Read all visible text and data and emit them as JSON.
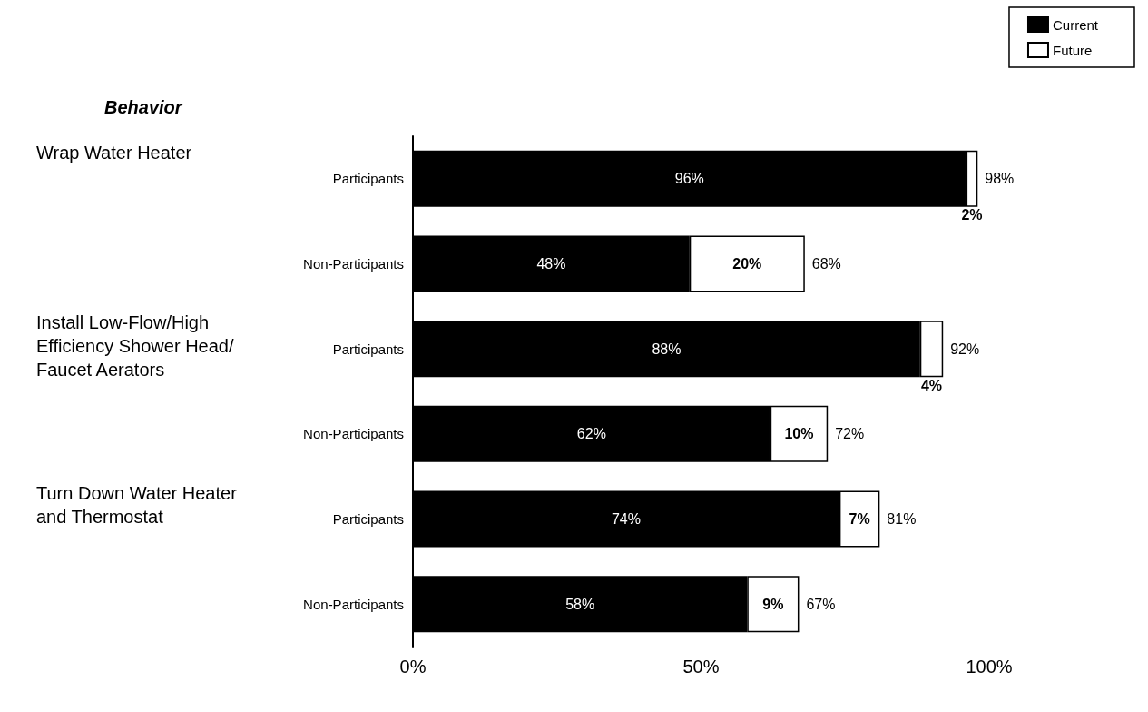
{
  "chart_data": {
    "type": "bar",
    "orientation": "horizontal",
    "stacked": true,
    "title": "Behavior",
    "categories": [
      "Participants",
      "Non-Participants",
      "Participants",
      "Non-Participants",
      "Participants",
      "Non-Participants"
    ],
    "series": [
      {
        "name": "Current",
        "color": "#000000",
        "values": [
          96,
          48,
          88,
          62,
          74,
          58
        ],
        "value_labels": [
          "96%",
          "48%",
          "88%",
          "62%",
          "74%",
          "58%"
        ]
      },
      {
        "name": "Future",
        "color": "#ffffff",
        "values": [
          2,
          20,
          4,
          10,
          7,
          9
        ],
        "value_labels": [
          "2%",
          "20%",
          "4%",
          "10%",
          "7%",
          "9%"
        ]
      }
    ],
    "totals": [
      "98%",
      "68%",
      "92%",
      "72%",
      "81%",
      "67%"
    ],
    "annotations": [
      "Wrap Water Heater",
      "Install Low-Flow/High Efficiency Shower Head/Faucet Aerators",
      "Turn Down Water Heater and Thermostat"
    ],
    "xlim": [
      0,
      100
    ],
    "xticks": [
      {
        "value": 0,
        "label": "0%"
      },
      {
        "value": 50,
        "label": "50%"
      },
      {
        "value": 100,
        "label": "100%"
      }
    ],
    "grid": false,
    "legend": "top right"
  }
}
